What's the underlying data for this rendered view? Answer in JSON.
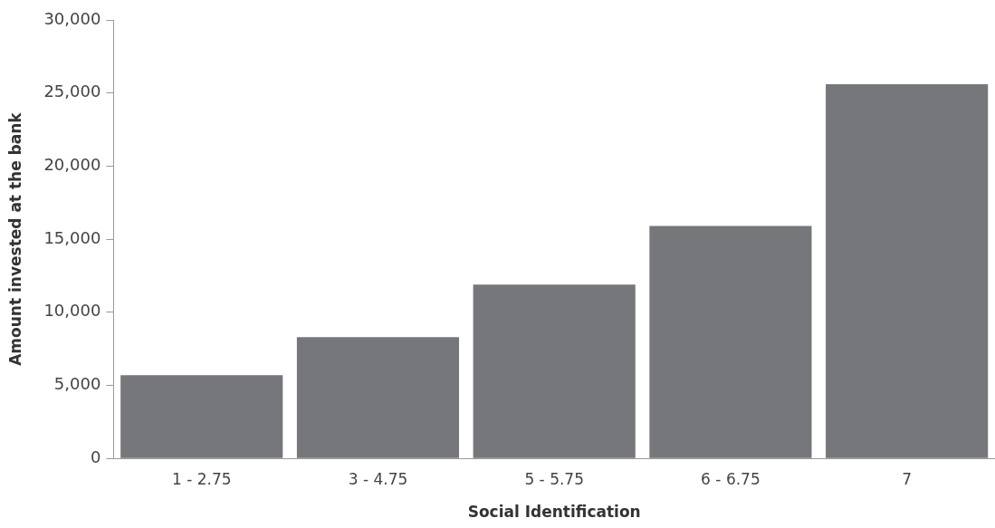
{
  "chart_data": {
    "type": "bar",
    "xlabel": "Social Identification",
    "ylabel": "Amount invested at the bank",
    "categories": [
      "1 - 2.75",
      "3 - 4.75",
      "5 - 5.75",
      "6 - 6.75",
      "7"
    ],
    "values": [
      5700,
      8300,
      11900,
      15900,
      25600
    ],
    "color": "#75777a",
    "ylim": [
      0,
      30000
    ],
    "yticks": [
      {
        "value": 0,
        "label": "0"
      },
      {
        "value": 5000,
        "label": "5,000"
      },
      {
        "value": 10000,
        "label": "10,000"
      },
      {
        "value": 15000,
        "label": "15,000"
      },
      {
        "value": 20000,
        "label": "20,000"
      },
      {
        "value": 25000,
        "label": "25,000"
      },
      {
        "value": 30000,
        "label": "30,000"
      }
    ],
    "grid": false,
    "legend": false
  }
}
